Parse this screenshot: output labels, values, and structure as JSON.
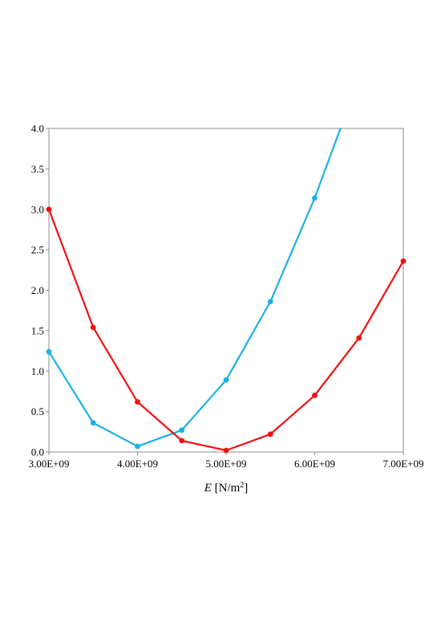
{
  "chart_data": {
    "type": "line",
    "title": "",
    "xlabel": {
      "symbol": "E",
      "unit_open": " [N/m",
      "unit_sup": "2",
      "unit_close": "]"
    },
    "ylabel": "",
    "xlim": [
      3000000000,
      7000000000
    ],
    "ylim": [
      0,
      4
    ],
    "x_ticks": [
      {
        "value": 3000000000,
        "label": "3.00E+09"
      },
      {
        "value": 4000000000,
        "label": "4.00E+09"
      },
      {
        "value": 5000000000,
        "label": "5.00E+09"
      },
      {
        "value": 6000000000,
        "label": "6.00E+09"
      },
      {
        "value": 7000000000,
        "label": "7.00E+09"
      }
    ],
    "y_ticks": [
      {
        "value": 0.0,
        "label": "0.0"
      },
      {
        "value": 0.5,
        "label": "0.5"
      },
      {
        "value": 1.0,
        "label": "1.0"
      },
      {
        "value": 1.5,
        "label": "1.5"
      },
      {
        "value": 2.0,
        "label": "2.0"
      },
      {
        "value": 2.5,
        "label": "2.5"
      },
      {
        "value": 3.0,
        "label": "3.0"
      },
      {
        "value": 3.5,
        "label": "3.5"
      },
      {
        "value": 4.0,
        "label": "4.0"
      }
    ],
    "grid": false,
    "legend": "none",
    "series": [
      {
        "color": "#1bb1e7",
        "points": [
          {
            "x": 3000000000,
            "y": 1.24
          },
          {
            "x": 3500000000,
            "y": 0.36
          },
          {
            "x": 4000000000,
            "y": 0.07
          },
          {
            "x": 4500000000,
            "y": 0.27
          },
          {
            "x": 5000000000,
            "y": 0.89
          },
          {
            "x": 5500000000,
            "y": 1.86
          },
          {
            "x": 6000000000,
            "y": 3.14
          }
        ],
        "line_continues_to": {
          "x": 6290000000,
          "y": 4.0
        }
      },
      {
        "color": "#ee1111",
        "points": [
          {
            "x": 3000000000,
            "y": 3.0
          },
          {
            "x": 3500000000,
            "y": 1.54
          },
          {
            "x": 4000000000,
            "y": 0.62
          },
          {
            "x": 4500000000,
            "y": 0.14
          },
          {
            "x": 5000000000,
            "y": 0.02
          },
          {
            "x": 5500000000,
            "y": 0.22
          },
          {
            "x": 6000000000,
            "y": 0.7
          },
          {
            "x": 6500000000,
            "y": 1.41
          },
          {
            "x": 7000000000,
            "y": 2.36
          }
        ]
      }
    ]
  }
}
